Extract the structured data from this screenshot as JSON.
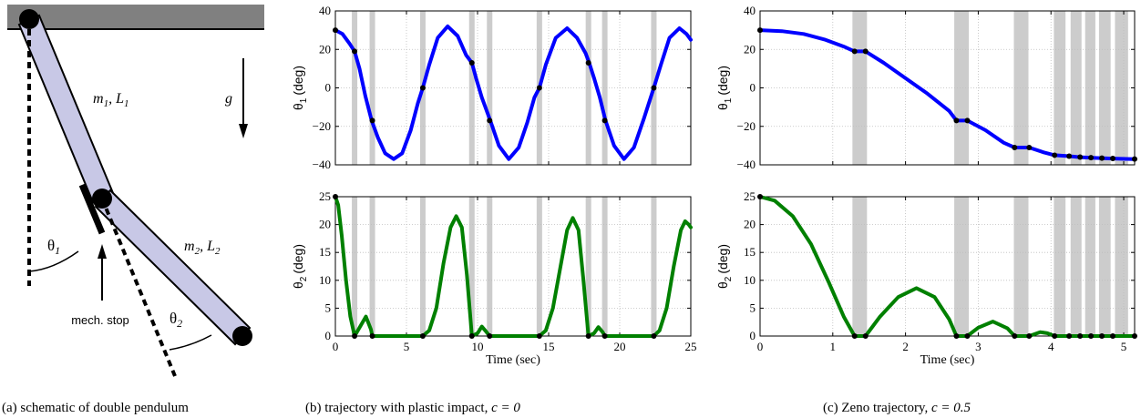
{
  "schematic": {
    "label_m1": "m",
    "sub_m1": "1",
    "label_L1": "L",
    "sub_L1": "1",
    "label_m2": "m",
    "sub_m2": "2",
    "label_L2": "L",
    "sub_L2": "2",
    "gravity_label": "g",
    "theta1_label": "θ",
    "theta1_sub": "1",
    "theta2_label": "θ",
    "theta2_sub": "2",
    "stop_label": "mech. stop",
    "colors": {
      "link_fill": "#c8c8e6",
      "ground": "#808080"
    }
  },
  "captions": {
    "a": "(a) schematic of double pendulum",
    "b_text": "(b) trajectory with plastic impact, ",
    "b_math": "c = 0",
    "c_text": "(c) Zeno trajectory, ",
    "c_math": "c = 0.5"
  },
  "chart_data": [
    {
      "id": "b1",
      "type": "line",
      "ylabel": "θ",
      "ylabel_sub": "1",
      "ylabel_unit": "(deg)",
      "xlabel": "",
      "xlim": [
        0,
        25
      ],
      "ylim": [
        -40,
        40
      ],
      "xticks": [
        0,
        5,
        10,
        15,
        20,
        25
      ],
      "xticklabels": [],
      "yticks": [
        -40,
        -20,
        0,
        20,
        40
      ],
      "yticklabels": [
        "−40",
        "−20",
        "0",
        "20",
        "40"
      ],
      "grid": true,
      "color": "#0000ff",
      "points": [
        [
          0,
          30
        ],
        [
          0.5,
          28
        ],
        [
          1.0,
          23
        ],
        [
          1.35,
          19
        ],
        [
          1.7,
          10
        ],
        [
          2.1,
          -4
        ],
        [
          2.55,
          -17
        ],
        [
          3.0,
          -26
        ],
        [
          3.5,
          -34
        ],
        [
          4.1,
          -37
        ],
        [
          4.7,
          -34
        ],
        [
          5.3,
          -22
        ],
        [
          5.8,
          -8
        ],
        [
          6.15,
          0
        ],
        [
          6.6,
          12
        ],
        [
          7.2,
          26
        ],
        [
          7.9,
          32
        ],
        [
          8.6,
          27
        ],
        [
          9.2,
          17
        ],
        [
          9.6,
          13
        ],
        [
          9.9,
          5
        ],
        [
          10.3,
          -5
        ],
        [
          10.9,
          -17
        ],
        [
          11.5,
          -30
        ],
        [
          12.2,
          -37
        ],
        [
          12.9,
          -31
        ],
        [
          13.5,
          -18
        ],
        [
          14.0,
          -5
        ],
        [
          14.35,
          0
        ],
        [
          14.8,
          12
        ],
        [
          15.5,
          26
        ],
        [
          16.3,
          31
        ],
        [
          17.0,
          26
        ],
        [
          17.6,
          18
        ],
        [
          17.85,
          13
        ],
        [
          18.2,
          5
        ],
        [
          18.6,
          -5
        ],
        [
          19.0,
          -17
        ],
        [
          19.6,
          -30
        ],
        [
          20.3,
          -37
        ],
        [
          21.0,
          -31
        ],
        [
          21.7,
          -16
        ],
        [
          22.4,
          0
        ],
        [
          22.9,
          12
        ],
        [
          23.5,
          26
        ],
        [
          24.2,
          31
        ],
        [
          24.7,
          28
        ],
        [
          25.0,
          25
        ]
      ],
      "events": [
        1.35,
        2.6,
        6.15,
        9.6,
        10.85,
        14.35,
        17.8,
        18.95,
        22.4
      ],
      "event_values": [
        19,
        -17,
        0,
        13,
        -17,
        0,
        13,
        -17,
        0
      ]
    },
    {
      "id": "b2",
      "type": "line",
      "ylabel": "θ",
      "ylabel_sub": "2",
      "ylabel_unit": "(deg)",
      "xlabel": "Time (sec)",
      "xlim": [
        0,
        25
      ],
      "ylim": [
        0,
        25
      ],
      "xticks": [
        0,
        5,
        10,
        15,
        20,
        25
      ],
      "xticklabels": [
        "0",
        "5",
        "10",
        "15",
        "20",
        "25"
      ],
      "yticks": [
        0,
        5,
        10,
        15,
        20,
        25
      ],
      "yticklabels": [
        "0",
        "5",
        "10",
        "15",
        "20",
        "25"
      ],
      "grid": true,
      "color": "#008000",
      "points": [
        [
          0,
          25
        ],
        [
          0.2,
          23.5
        ],
        [
          0.45,
          18
        ],
        [
          0.75,
          10
        ],
        [
          1.05,
          3.5
        ],
        [
          1.35,
          0
        ],
        [
          1.7,
          1.5
        ],
        [
          2.15,
          3.5
        ],
        [
          2.5,
          1.2
        ],
        [
          2.6,
          0
        ],
        [
          6.15,
          0
        ],
        [
          6.6,
          1
        ],
        [
          7.1,
          5
        ],
        [
          7.6,
          13
        ],
        [
          8.1,
          19.5
        ],
        [
          8.5,
          21.5
        ],
        [
          8.9,
          19.5
        ],
        [
          9.25,
          11
        ],
        [
          9.6,
          0
        ],
        [
          10.0,
          0.5
        ],
        [
          10.3,
          1.7
        ],
        [
          10.6,
          0.8
        ],
        [
          10.85,
          0
        ],
        [
          14.35,
          0
        ],
        [
          14.8,
          1
        ],
        [
          15.3,
          5
        ],
        [
          15.8,
          12
        ],
        [
          16.3,
          19
        ],
        [
          16.7,
          21.2
        ],
        [
          17.1,
          19
        ],
        [
          17.45,
          10
        ],
        [
          17.8,
          0
        ],
        [
          18.2,
          0.5
        ],
        [
          18.5,
          1.6
        ],
        [
          18.8,
          0.7
        ],
        [
          18.95,
          0
        ],
        [
          22.4,
          0
        ],
        [
          22.8,
          1
        ],
        [
          23.3,
          5
        ],
        [
          23.8,
          12.5
        ],
        [
          24.3,
          19
        ],
        [
          24.6,
          20.6
        ],
        [
          24.85,
          20
        ],
        [
          25.0,
          19.5
        ]
      ],
      "events": [
        1.35,
        2.6,
        6.15,
        9.6,
        10.85,
        14.35,
        17.8,
        18.95,
        22.4
      ],
      "event_values": [
        0,
        0,
        0,
        0,
        0,
        0,
        0,
        0,
        0
      ]
    },
    {
      "id": "c1",
      "type": "line",
      "ylabel": "θ",
      "ylabel_sub": "1",
      "ylabel_unit": "(deg)",
      "xlabel": "",
      "xlim": [
        0,
        5.15
      ],
      "ylim": [
        -40,
        40
      ],
      "xticks": [
        0,
        1,
        2,
        3,
        4,
        5
      ],
      "xticklabels": [],
      "yticks": [
        -40,
        -20,
        0,
        20,
        40
      ],
      "yticklabels": [
        "−40",
        "−20",
        "0",
        "20",
        "40"
      ],
      "grid": true,
      "color": "#0000ff",
      "points": [
        [
          0,
          30
        ],
        [
          0.3,
          29.5
        ],
        [
          0.6,
          28
        ],
        [
          0.9,
          25
        ],
        [
          1.15,
          21.5
        ],
        [
          1.3,
          19
        ],
        [
          1.45,
          19
        ],
        [
          1.7,
          13
        ],
        [
          2.0,
          5
        ],
        [
          2.3,
          -3
        ],
        [
          2.6,
          -12
        ],
        [
          2.7,
          -17
        ],
        [
          2.85,
          -17
        ],
        [
          3.1,
          -22
        ],
        [
          3.35,
          -28.5
        ],
        [
          3.5,
          -31
        ],
        [
          3.7,
          -31
        ],
        [
          3.9,
          -33.5
        ],
        [
          4.05,
          -35
        ],
        [
          4.25,
          -35.5
        ],
        [
          4.4,
          -36
        ],
        [
          4.6,
          -36.4
        ],
        [
          4.8,
          -36.7
        ],
        [
          5.15,
          -37
        ]
      ],
      "events": [
        1.3,
        1.45,
        2.7,
        2.85,
        3.5,
        3.7,
        4.05,
        4.25,
        4.4,
        4.55,
        4.7,
        4.85,
        5.15
      ],
      "event_values": [
        19,
        19,
        -17,
        -17,
        -31,
        -31,
        -35,
        -35.5,
        -36,
        -36.3,
        -36.5,
        -36.7,
        -37
      ],
      "bands": [
        [
          1.27,
          1.47
        ],
        [
          2.67,
          2.87
        ],
        [
          3.49,
          3.69
        ],
        [
          4.04,
          4.2
        ],
        [
          4.27,
          4.42
        ],
        [
          4.47,
          4.61
        ],
        [
          4.66,
          4.82
        ],
        [
          4.88,
          5.06
        ]
      ]
    },
    {
      "id": "c2",
      "type": "line",
      "ylabel": "θ",
      "ylabel_sub": "2",
      "ylabel_unit": "(deg)",
      "xlabel": "Time (sec)",
      "xlim": [
        0,
        5.15
      ],
      "ylim": [
        0,
        25
      ],
      "xticks": [
        0,
        1,
        2,
        3,
        4,
        5
      ],
      "xticklabels": [
        "0",
        "1",
        "2",
        "3",
        "4",
        "5"
      ],
      "yticks": [
        0,
        5,
        10,
        15,
        20,
        25
      ],
      "yticklabels": [
        "0",
        "5",
        "10",
        "15",
        "20",
        "25"
      ],
      "grid": true,
      "color": "#008000",
      "points": [
        [
          0,
          25
        ],
        [
          0.2,
          24.3
        ],
        [
          0.45,
          21.5
        ],
        [
          0.7,
          16.5
        ],
        [
          0.95,
          9.5
        ],
        [
          1.15,
          3.5
        ],
        [
          1.3,
          0
        ],
        [
          1.45,
          0
        ],
        [
          1.65,
          3.5
        ],
        [
          1.9,
          7
        ],
        [
          2.15,
          8.6
        ],
        [
          2.4,
          7
        ],
        [
          2.6,
          3
        ],
        [
          2.7,
          0
        ],
        [
          2.85,
          0
        ],
        [
          3.0,
          1.5
        ],
        [
          3.2,
          2.6
        ],
        [
          3.4,
          1.4
        ],
        [
          3.5,
          0
        ],
        [
          3.7,
          0
        ],
        [
          3.85,
          0.7
        ],
        [
          3.95,
          0.5
        ],
        [
          4.05,
          0
        ],
        [
          5.15,
          0
        ]
      ],
      "events": [
        1.3,
        1.45,
        2.7,
        2.85,
        3.5,
        3.7,
        4.05,
        4.25,
        4.4,
        4.55,
        4.7,
        4.85,
        5.15
      ],
      "event_values": [
        0,
        0,
        0,
        0,
        0,
        0,
        0,
        0,
        0,
        0,
        0,
        0,
        0
      ],
      "bands": [
        [
          1.27,
          1.47
        ],
        [
          2.67,
          2.87
        ],
        [
          3.49,
          3.69
        ],
        [
          4.04,
          4.2
        ],
        [
          4.27,
          4.42
        ],
        [
          4.47,
          4.61
        ],
        [
          4.66,
          4.82
        ],
        [
          4.88,
          5.06
        ]
      ]
    }
  ]
}
